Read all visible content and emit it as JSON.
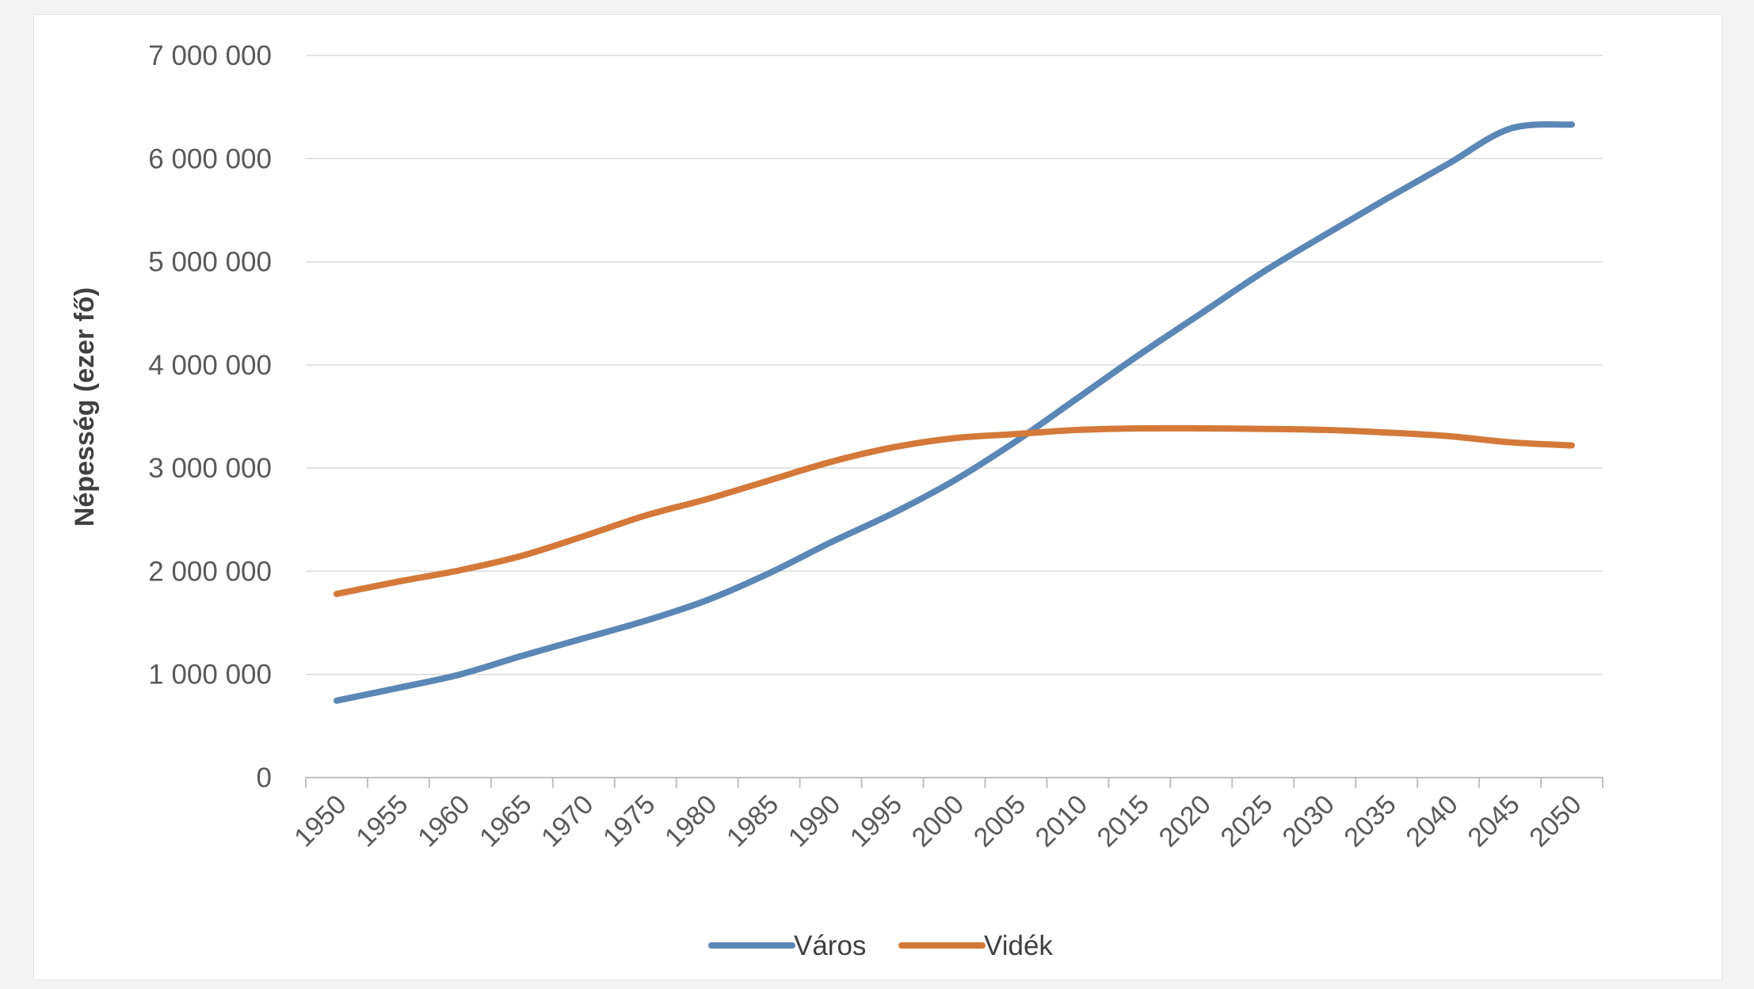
{
  "chart_data": {
    "type": "line",
    "title": "",
    "xlabel": "",
    "ylabel": "Népesség (ezer fő)",
    "ylim": [
      0,
      7000000
    ],
    "y_ticks": [
      0,
      1000000,
      2000000,
      3000000,
      4000000,
      5000000,
      6000000,
      7000000
    ],
    "y_tick_labels": [
      "0",
      "1 000 000",
      "2 000 000",
      "3 000 000",
      "4 000 000",
      "5 000 000",
      "6 000 000",
      "7 000 000"
    ],
    "categories": [
      "1950",
      "1955",
      "1960",
      "1965",
      "1970",
      "1975",
      "1980",
      "1985",
      "1990",
      "1995",
      "2000",
      "2005",
      "2010",
      "2015",
      "2020",
      "2025",
      "2030",
      "2035",
      "2040",
      "2045",
      "2050"
    ],
    "grid": "horizontal",
    "legend_position": "bottom",
    "series": [
      {
        "name": "Város",
        "color": "#5b87b6",
        "values": [
          746000,
          870000,
          1000000,
          1180000,
          1350000,
          1520000,
          1720000,
          1980000,
          2280000,
          2560000,
          2880000,
          3260000,
          3680000,
          4100000,
          4500000,
          4900000,
          5260000,
          5610000,
          5950000,
          6290000,
          6330000
        ]
      },
      {
        "name": "Vidék",
        "color": "#d4793a",
        "values": [
          1780000,
          1900000,
          2010000,
          2150000,
          2340000,
          2540000,
          2700000,
          2880000,
          3060000,
          3200000,
          3290000,
          3330000,
          3370000,
          3385000,
          3385000,
          3380000,
          3370000,
          3345000,
          3310000,
          3250000,
          3220000
        ]
      }
    ]
  }
}
